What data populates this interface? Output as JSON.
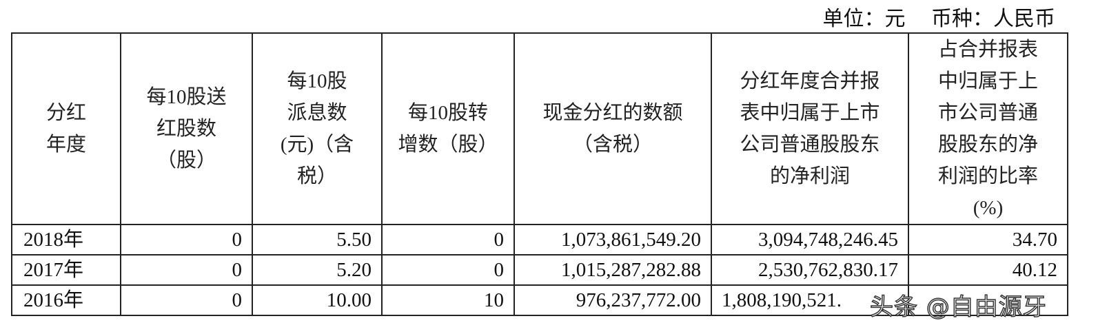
{
  "unit_line": "单位：元　 币种：人民币",
  "headers": [
    "分红\n年度",
    "每10股送\n红股数\n（股）",
    "每10股\n派息数\n(元)（含\n税）",
    "每10股转\n增数（股）",
    "现金分红的数额\n（含税）",
    "分红年度合并报\n表中归属于上市\n公司普通股股东\n的净利润",
    "占合并报表\n中归属于上\n市公司普通\n股股东的净\n利润的比率\n(%)"
  ],
  "rows": [
    [
      "2018年",
      "0",
      "5.50",
      "0",
      "1,073,861,549.20",
      "3,094,748,246.45",
      "34.70"
    ],
    [
      "2017年",
      "0",
      "5.20",
      "0",
      "1,015,287,282.88",
      "2,530,762,830.17",
      "40.12"
    ],
    [
      "2016年",
      "0",
      "10.00",
      "10",
      "976,237,772.00",
      "1,808,190,521.",
      ""
    ]
  ],
  "watermark": "头条 @自由源牙"
}
